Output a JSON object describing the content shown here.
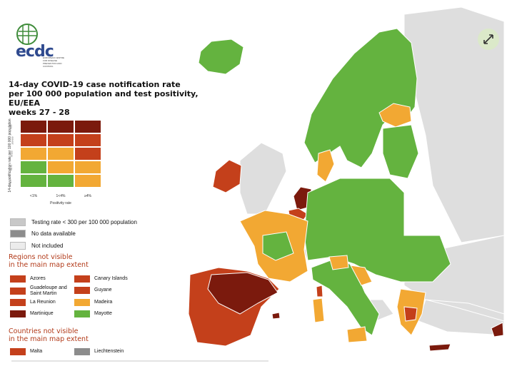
{
  "header": {
    "logo_text": "ecdc",
    "logo_subtitle": "EUROPEAN CENTRE FOR DISEASE PREVENTION AND CONTROL"
  },
  "title": {
    "line1": "14-day COVID-19 case notification rate",
    "line2": "per 100 000 population and test positivity, EU/EEA",
    "line3": "weeks 27 - 28"
  },
  "matrix": {
    "y_label": "14-day notification rate per 100 000 population",
    "y_ticks": [
      ">500",
      "200-500",
      "75-200",
      "50-74",
      "<50"
    ],
    "x_label": "Positivity rate",
    "x_ticks": [
      "<1%",
      "1<4%",
      "≥4%"
    ],
    "colors": [
      [
        "#7b1a0d",
        "#7b1a0d",
        "#7b1a0d"
      ],
      [
        "#c4401b",
        "#c4401b",
        "#c4401b"
      ],
      [
        "#f2a833",
        "#f2a833",
        "#c4401b"
      ],
      [
        "#64b33f",
        "#f2a833",
        "#f2a833"
      ],
      [
        "#64b33f",
        "#64b33f",
        "#f2a833"
      ]
    ]
  },
  "legend": {
    "items": [
      {
        "label": "Testing rate < 300 per 100 000 population",
        "color": "#c8c8c8"
      },
      {
        "label": "No data available",
        "color": "#8c8c8c"
      },
      {
        "label": "Not included",
        "color": "#ececec"
      }
    ]
  },
  "regions": {
    "heading_line1": "Regions not visible",
    "heading_line2": "in the main map extent",
    "left": [
      {
        "label": "Azores",
        "color": "#c4401b"
      },
      {
        "label": "Guadeloupe and Saint Martin",
        "color": "#c4401b"
      },
      {
        "label": "La Reunion",
        "color": "#c4401b"
      },
      {
        "label": "Martinique",
        "color": "#7b1a0d"
      }
    ],
    "right": [
      {
        "label": "Canary Islands",
        "color": "#c4401b"
      },
      {
        "label": "Guyane",
        "color": "#c4401b"
      },
      {
        "label": "Madeira",
        "color": "#f2a833"
      },
      {
        "label": "Mayotte",
        "color": "#64b33f"
      }
    ]
  },
  "countries": {
    "heading_line1": "Countries not visible",
    "heading_line2": "in the main map extent",
    "items": [
      {
        "label": "Malta",
        "color": "#c4401b"
      },
      {
        "label": "Liechtenstein",
        "color": "#8c8c8c"
      }
    ]
  },
  "map_colors": {
    "green": "#64b33f",
    "orange": "#f2a833",
    "red": "#c4401b",
    "dark_red": "#7b1a0d",
    "not_included": "#dedede",
    "sea": "#ffffff",
    "borders": "#ffffff"
  },
  "icons": {
    "expand": "expand-arrows-icon",
    "logo": "globe-logo-icon"
  }
}
